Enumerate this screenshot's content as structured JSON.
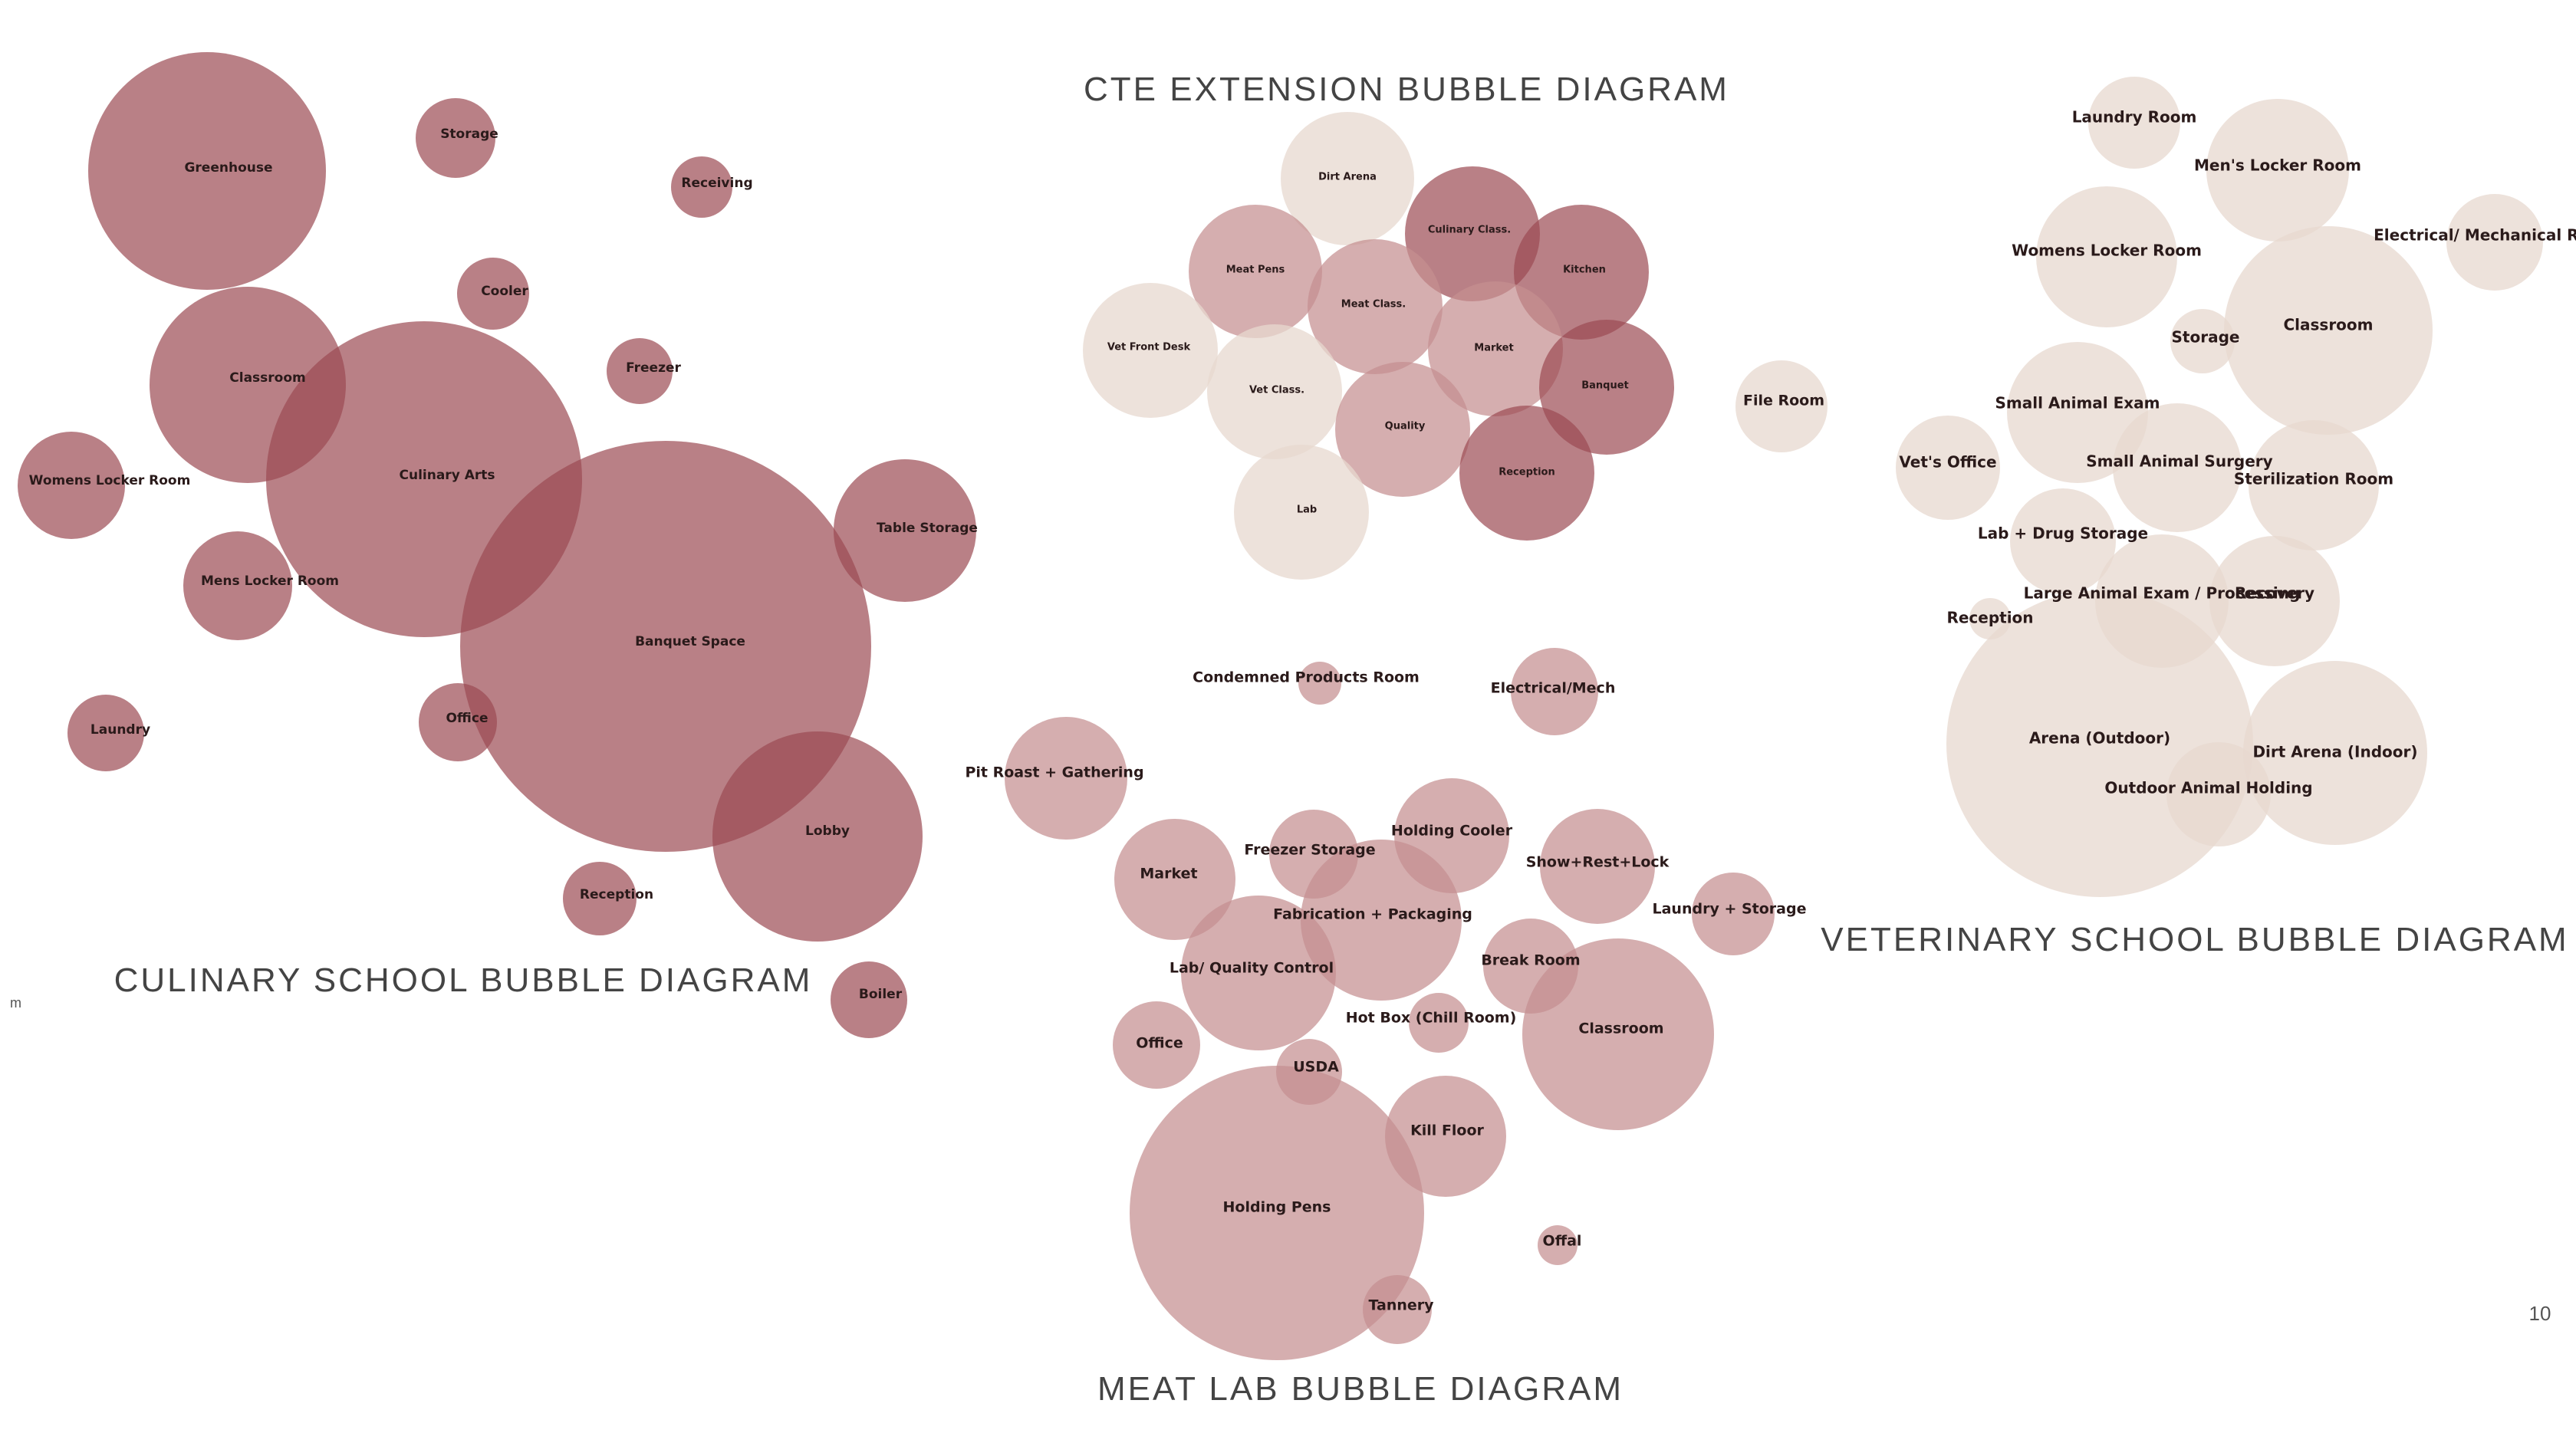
{
  "page": {
    "number": "10",
    "stray_mark": "m"
  },
  "colors": {
    "dark": "#9b4a52",
    "medium": "#c58f90",
    "light": "#e7d8cf",
    "label": "#2a1a1a",
    "title": "#444444"
  },
  "diagrams": {
    "culinary": {
      "title": "CULINARY SCHOOL BUBBLE DIAGRAM",
      "bubbles": [
        "Greenhouse",
        "Storage",
        "Receiving",
        "Cooler",
        "Freezer",
        "Classroom",
        "Culinary Arts",
        "Womens Locker Room",
        "Mens Locker Room",
        "Banquet Space",
        "Table Storage",
        "Office",
        "Laundry",
        "Lobby",
        "Reception",
        "Boiler"
      ]
    },
    "cte": {
      "title": "CTE EXTENSION BUBBLE DIAGRAM",
      "bubbles": [
        "Dirt Arena",
        "Meat Pens",
        "Culinary Class.",
        "Kitchen",
        "Meat Class.",
        "Vet Front Desk",
        "Market",
        "Vet Class.",
        "Banquet",
        "Quality",
        "Reception",
        "Lab",
        "File Room"
      ]
    },
    "meat": {
      "title": "MEAT LAB BUBBLE DIAGRAM",
      "bubbles": [
        "Condemned Products Room",
        "Electrical/Mech",
        "Pit Roast + Gathering",
        "Market",
        "Freezer Storage",
        "Holding Cooler",
        "Show+Rest+Lock",
        "Fabrication + Packaging",
        "Laundry + Storage",
        "Lab/ Quality Control",
        "Break Room",
        "Office",
        "Hot Box  (Chill Room)",
        "Classroom",
        "USDA",
        "Kill Floor",
        "Holding Pens",
        "Offal",
        "Tannery"
      ]
    },
    "vet": {
      "title": "VETERINARY SCHOOL BUBBLE DIAGRAM",
      "bubbles": [
        "Laundry Room",
        "Men's Locker Room",
        "Electrical/ Mechanical Room",
        "Womens Locker Room",
        "Storage",
        "Classroom",
        "Small Animal Exam",
        "Vet's Office",
        "Small Animal Surgery",
        "Sterilization Room",
        "Lab + Drug Storage",
        "Large Animal Exam / Processing",
        "Recovery",
        "Reception",
        "Arena (Outdoor)",
        "Dirt Arena (Indoor)",
        "Outdoor Animal Holding"
      ]
    }
  }
}
